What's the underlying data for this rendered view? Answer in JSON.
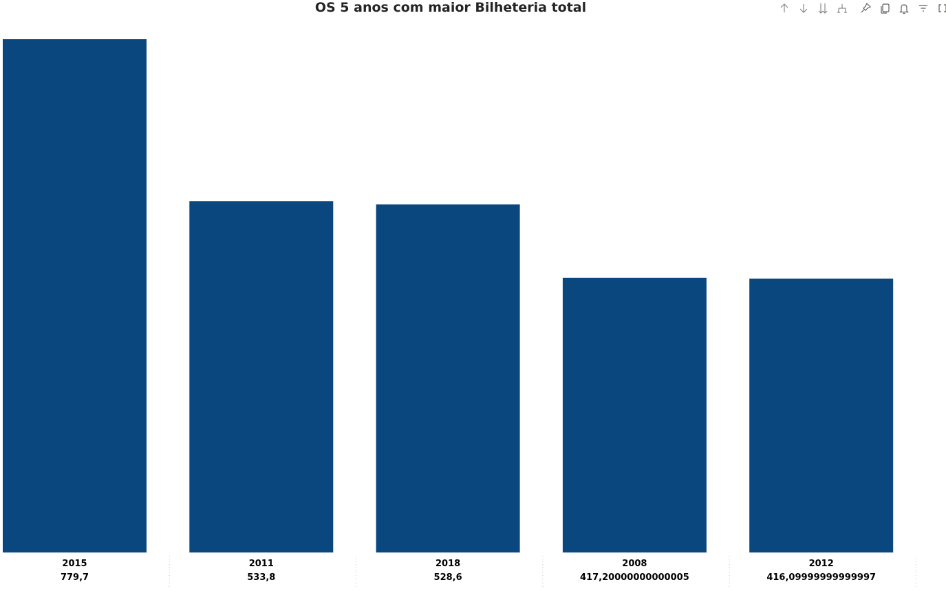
{
  "chart_data": {
    "type": "bar",
    "title": "OS 5 anos com maior Bilheteria total",
    "categories": [
      "2015",
      "2011",
      "2018",
      "2008",
      "2012"
    ],
    "values": [
      779.7,
      533.8,
      528.6,
      417.2,
      416.1
    ],
    "value_labels": [
      "779,7",
      "533,8",
      "528,6",
      "417,20000000000005",
      "416,09999999999997"
    ],
    "xlabel": "",
    "ylabel": "",
    "ylim": [
      0,
      779.7
    ],
    "grid": false,
    "legend": "none",
    "bar_color": "#0a477e"
  },
  "toolbar": {
    "icons": [
      "arrow-up-icon",
      "arrow-down-icon",
      "double-arrow-down-icon",
      "expand-hierarchy-icon",
      "pin-icon",
      "copy-icon",
      "bell-icon",
      "filter-icon",
      "focus-mode-icon"
    ]
  }
}
